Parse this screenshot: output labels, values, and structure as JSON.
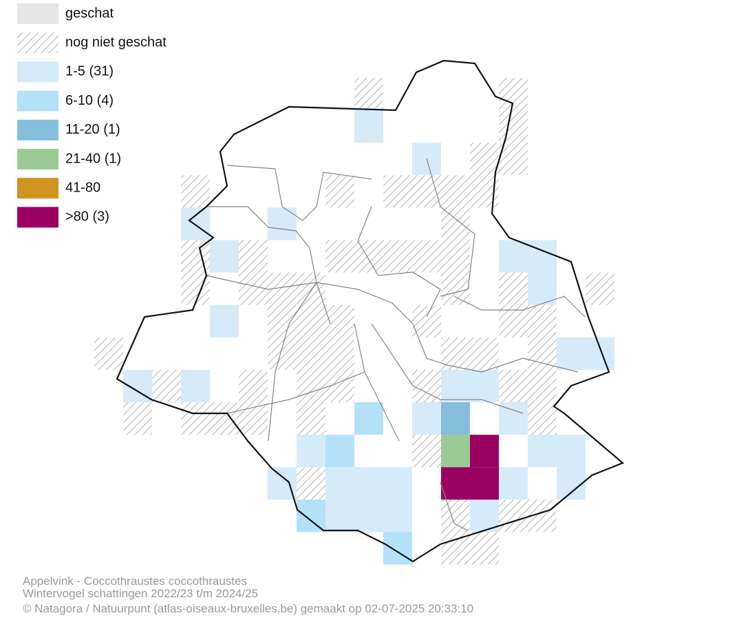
{
  "legend": [
    {
      "label": "geschat",
      "color": "#e6e6e6"
    },
    {
      "label": "nog niet geschat",
      "color": "hatch"
    },
    {
      "label": "1-5 (31)",
      "color": "#d6ebf9"
    },
    {
      "label": "6-10 (4)",
      "color": "#b3e1f8"
    },
    {
      "label": "11-20 (1)",
      "color": "#84bedb"
    },
    {
      "label": "21-40 (1)",
      "color": "#9bcb94"
    },
    {
      "label": "41-80",
      "color": "#d09320"
    },
    {
      "label": ">80 (3)",
      "color": "#9b0063"
    }
  ],
  "footer": {
    "line1": "Appelvink - Coccothraustes coccothraustes",
    "line2": "Wintervogel schattingen 2022/23 t/m 2024/25",
    "line3": "© Natagora / Natuurpunt (atlas-oiseaux-bruxelles.be) gemaakt op 02-07-2025 20:33:10"
  }
}
